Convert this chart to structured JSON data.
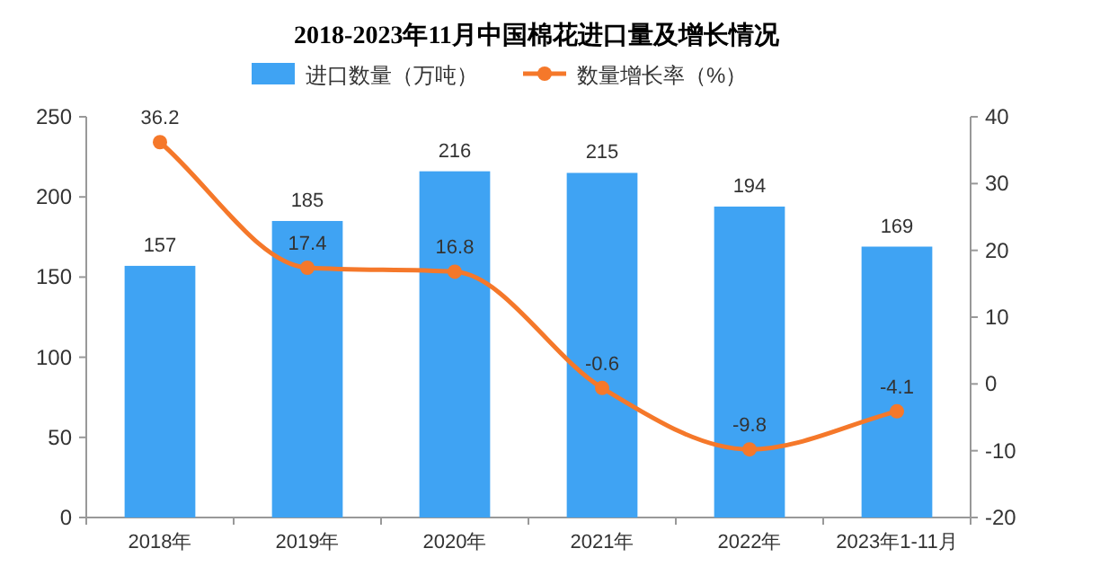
{
  "chart_data": {
    "type": "bar",
    "title": "2018-2023年11月中国棉花进口量及增长情况",
    "categories": [
      "2018年",
      "2019年",
      "2020年",
      "2021年",
      "2022年",
      "2023年1-11月"
    ],
    "series": [
      {
        "name": "进口数量（万吨）",
        "color": "#3fa3f3",
        "values": [
          157,
          185,
          216,
          215,
          194,
          169
        ]
      },
      {
        "name": "数量增长率（%）",
        "color": "#f5782a",
        "type": "line",
        "axis": "y2",
        "marker": "circle",
        "values": [
          36.2,
          17.4,
          16.8,
          -0.6,
          -9.8,
          -4.1
        ]
      }
    ],
    "ylim": [
      0,
      250
    ],
    "yticks": [
      0,
      50,
      100,
      150,
      200,
      250
    ],
    "y2lim": [
      -20,
      40
    ],
    "y2ticks": [
      -20,
      -10,
      0,
      10,
      20,
      30,
      40
    ],
    "legend": "top",
    "data_labels": true
  }
}
